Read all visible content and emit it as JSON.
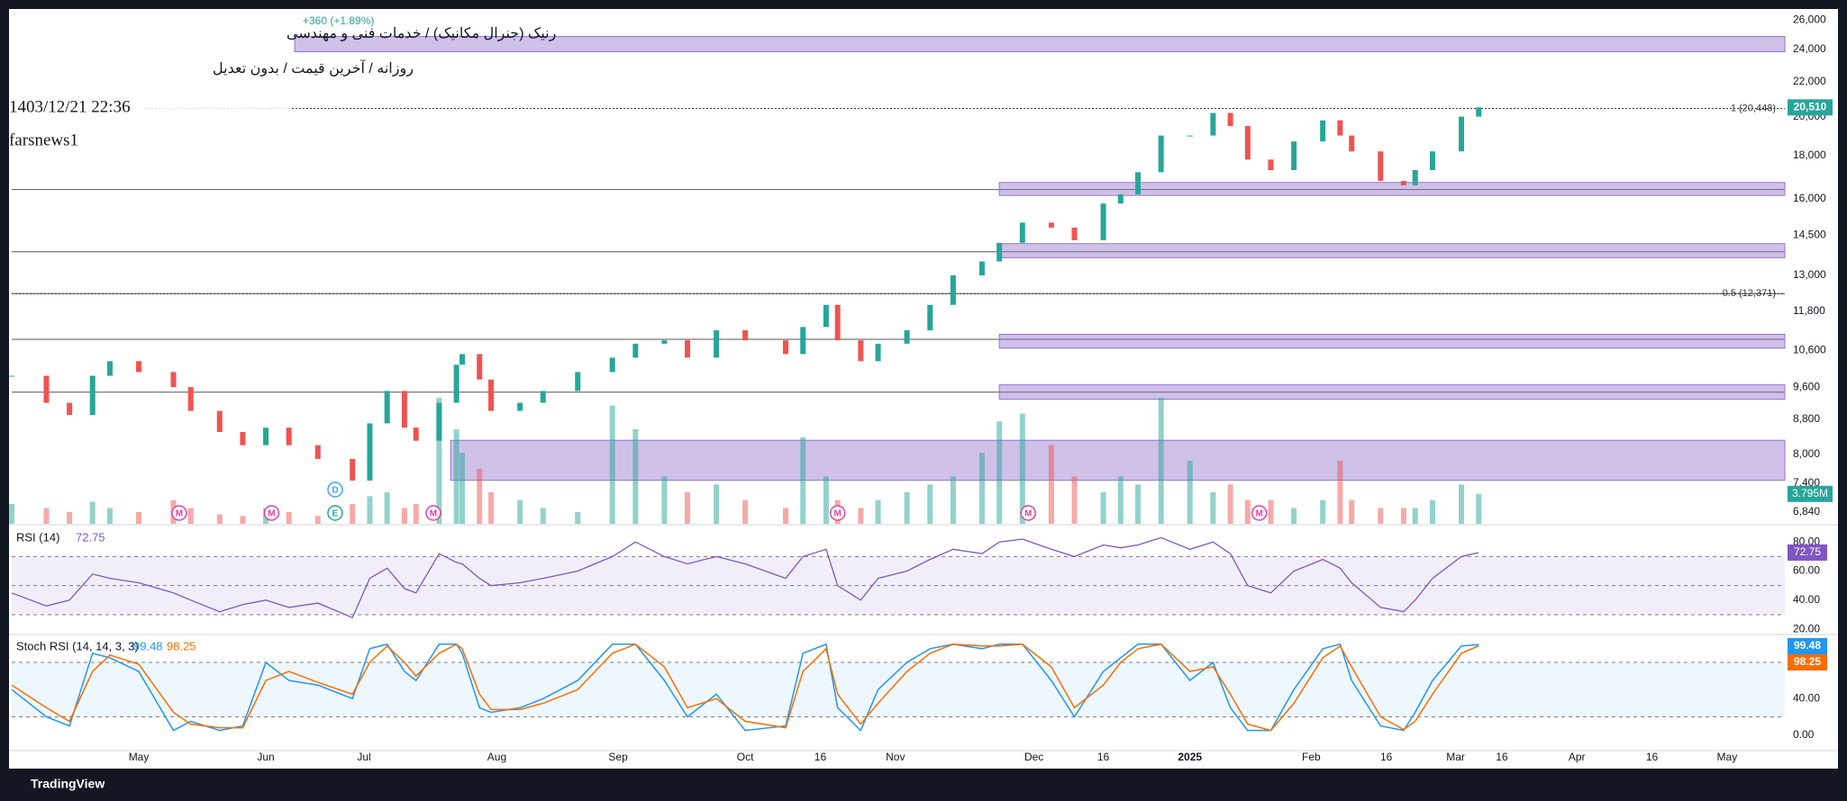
{
  "chart_data": {
    "type": "candlestick",
    "title": "رنیک (جنرال مکانیک) / خدمات فنی و مهندسی",
    "subtitle": "روزانه / آخرین قیمت / بدون تعدیل",
    "timestamp": "1403/12/21 22:36",
    "author": "farsnews1",
    "change_text": "+360 (+1.89%)",
    "log_scale": true,
    "up_color": "#26a69a",
    "down_color": "#ef5350",
    "x": [
      0,
      6,
      10,
      14,
      17,
      22,
      28,
      31,
      36,
      40,
      44,
      48,
      53,
      59,
      62,
      65,
      68,
      70,
      74,
      77,
      78,
      81,
      83,
      88,
      92,
      98,
      104,
      108,
      113,
      117,
      122,
      127,
      134,
      137,
      141,
      143,
      147,
      150,
      155,
      159,
      163,
      168,
      171,
      175,
      180,
      184,
      189,
      192,
      195,
      199,
      204,
      208,
      211,
      214,
      218,
      222,
      227,
      230,
      232,
      237,
      241,
      243,
      246,
      251,
      254
    ],
    "close": [
      9900,
      9200,
      8900,
      9900,
      10300,
      10000,
      9600,
      9000,
      8500,
      8200,
      8600,
      8200,
      7900,
      7450,
      8700,
      9500,
      8600,
      8300,
      9200,
      10200,
      10500,
      9800,
      9000,
      9200,
      9500,
      10000,
      10400,
      10800,
      10900,
      10400,
      11200,
      10900,
      10500,
      11300,
      12000,
      10900,
      10300,
      10800,
      11200,
      12000,
      13000,
      13500,
      14200,
      15000,
      14800,
      14300,
      15800,
      16200,
      17200,
      19000,
      19000,
      20200,
      19500,
      17800,
      17300,
      18700,
      19800,
      19000,
      18200,
      16800,
      16600,
      17300,
      18200,
      20000,
      20510
    ],
    "last_label": "20,510",
    "xlim": [
      0,
      307
    ],
    "xticks": [
      {
        "value": 22,
        "label": "May"
      },
      {
        "value": 44,
        "label": "Jun"
      },
      {
        "value": 61,
        "label": "Jul"
      },
      {
        "value": 84,
        "label": "Aug"
      },
      {
        "value": 105,
        "label": "Sep"
      },
      {
        "value": 127,
        "label": "Oct"
      },
      {
        "value": 140,
        "label": "16"
      },
      {
        "value": 153,
        "label": "Nov"
      },
      {
        "value": 177,
        "label": "Dec"
      },
      {
        "value": 189,
        "label": "16"
      },
      {
        "value": 204,
        "label": "2025"
      },
      {
        "value": 225,
        "label": "Feb"
      },
      {
        "value": 238,
        "label": "16"
      },
      {
        "value": 250,
        "label": "Mar"
      },
      {
        "value": 258,
        "label": "16"
      },
      {
        "value": 271,
        "label": "Apr"
      },
      {
        "value": 284,
        "label": "16"
      },
      {
        "value": 297,
        "label": "May"
      }
    ],
    "ylim": [
      6625,
      26590
    ],
    "yticks": [
      {
        "value": 26000,
        "label": "26,000"
      },
      {
        "value": 24000,
        "label": "24,000"
      },
      {
        "value": 22000,
        "label": "22,000"
      },
      {
        "value": 20000,
        "label": "20,000"
      },
      {
        "value": 18000,
        "label": "18,000"
      },
      {
        "value": 16000,
        "label": "16,000"
      },
      {
        "value": 14500,
        "label": "14,500"
      },
      {
        "value": 13000,
        "label": "13,000"
      },
      {
        "value": 11800,
        "label": "11,800"
      },
      {
        "value": 10600,
        "label": "10,600"
      },
      {
        "value": 9600,
        "label": "9,600"
      },
      {
        "value": 8800,
        "label": "8,800"
      },
      {
        "value": 8000,
        "label": "8,000"
      },
      {
        "value": 7400,
        "label": "7,400"
      },
      {
        "value": 6840,
        "label": "6,840"
      }
    ],
    "levels": [
      16410,
      13860,
      12371,
      10930,
      9470
    ],
    "fib": [
      {
        "value": 20448,
        "label": "1 (20,448)"
      },
      {
        "value": 12371,
        "label": "0.5 (12,371)"
      }
    ],
    "zones": [
      {
        "x": 49,
        "range": [
          23850,
          24860
        ]
      },
      {
        "x": 171,
        "range": [
          16150,
          16730
        ]
      },
      {
        "x": 171,
        "range": [
          13640,
          14170
        ]
      },
      {
        "x": 171,
        "range": [
          10670,
          11080
        ]
      },
      {
        "x": 171,
        "range": [
          9290,
          9660
        ]
      },
      {
        "x": 76,
        "range": [
          7455,
          8310
        ]
      }
    ],
    "events": [
      {
        "x": 29,
        "label": "M"
      },
      {
        "x": 45,
        "label": "M"
      },
      {
        "x": 73,
        "label": "M"
      },
      {
        "x": 143,
        "label": "M"
      },
      {
        "x": 176,
        "label": "M"
      },
      {
        "x": 216,
        "label": "M"
      },
      {
        "x": 56,
        "label": "E"
      },
      {
        "x": 56,
        "label": "D"
      }
    ],
    "volume": {
      "ylim": [
        0,
        65
      ],
      "last_label": "3.795M",
      "values": [
        2.5,
        2,
        1.5,
        2.8,
        2,
        1.5,
        3,
        2,
        1.2,
        1,
        2,
        1.5,
        1,
        2.5,
        3.5,
        4,
        2,
        2.5,
        16,
        12,
        9,
        7,
        4,
        3,
        2,
        1.5,
        15,
        12,
        6,
        4,
        5,
        3,
        2,
        11,
        6,
        3,
        2,
        3,
        4,
        5,
        6,
        9,
        13,
        14,
        10,
        6,
        4,
        6,
        5,
        16,
        8,
        4,
        5,
        3,
        3,
        2,
        3,
        8,
        3,
        2,
        2,
        2,
        3,
        5,
        3.795
      ]
    },
    "rsi": {
      "name": "RSI (14)",
      "color": "#7e57c2",
      "ylim": [
        17.6,
        91.3
      ],
      "levels": [
        70,
        50,
        30
      ],
      "yticks": [
        {
          "value": 80,
          "label": "80.00"
        },
        {
          "value": 60,
          "label": "60.00"
        },
        {
          "value": 40,
          "label": "40.00"
        },
        {
          "value": 20,
          "label": "20.00"
        }
      ],
      "values": [
        45,
        36,
        40,
        58,
        55,
        52,
        45,
        40,
        32,
        37,
        40,
        35,
        38,
        28,
        55,
        62,
        48,
        45,
        72,
        66,
        65,
        55,
        50,
        52,
        55,
        60,
        70,
        80,
        70,
        65,
        70,
        65,
        55,
        70,
        75,
        50,
        40,
        55,
        60,
        68,
        75,
        72,
        80,
        82,
        75,
        70,
        78,
        76,
        78,
        83,
        75,
        80,
        72,
        50,
        45,
        60,
        68,
        62,
        52,
        35,
        32,
        40,
        55,
        70,
        72.75
      ]
    },
    "stoch": {
      "name": "Stoch RSI (14, 14, 3, 3)",
      "ylim": [
        -14.2,
        109.7
      ],
      "levels": [
        80,
        20
      ],
      "yticks": [
        {
          "value": 40,
          "label": "40.00"
        },
        {
          "value": 0,
          "label": "0.00"
        }
      ],
      "k": {
        "color": "#2196f3",
        "values": [
          50,
          20,
          10,
          90,
          85,
          70,
          5,
          15,
          5,
          10,
          80,
          60,
          55,
          40,
          95,
          100,
          70,
          60,
          100,
          100,
          90,
          30,
          25,
          30,
          40,
          60,
          100,
          100,
          60,
          20,
          45,
          5,
          10,
          90,
          100,
          30,
          5,
          50,
          80,
          95,
          100,
          95,
          100,
          100,
          60,
          20,
          70,
          85,
          100,
          100,
          60,
          80,
          30,
          5,
          5,
          50,
          95,
          100,
          60,
          10,
          5,
          25,
          60,
          98,
          99.48
        ]
      },
      "d": {
        "color": "#ff6d00",
        "values": [
          55,
          30,
          15,
          70,
          88,
          78,
          25,
          12,
          8,
          8,
          60,
          70,
          58,
          45,
          80,
          98,
          80,
          65,
          90,
          100,
          95,
          45,
          28,
          28,
          35,
          50,
          90,
          100,
          75,
          30,
          40,
          15,
          8,
          70,
          95,
          45,
          12,
          35,
          70,
          90,
          100,
          98,
          98,
          100,
          75,
          30,
          55,
          80,
          95,
          100,
          70,
          75,
          45,
          12,
          5,
          35,
          85,
          98,
          75,
          20,
          6,
          15,
          45,
          90,
          98.25
        ]
      }
    }
  },
  "footer": {
    "brand": "TradingView"
  }
}
